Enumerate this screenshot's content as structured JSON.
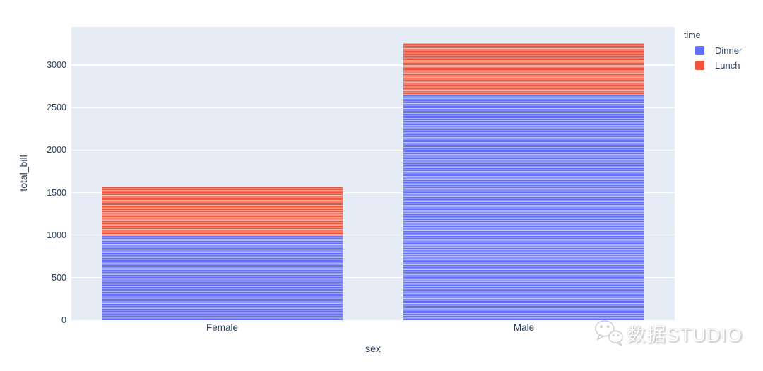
{
  "figure": {
    "background_color": "#ffffff",
    "plot_background_color": "#e5ecf6",
    "grid_color": "#ffffff",
    "font_color": "#2a3f5f"
  },
  "chart_data": {
    "type": "bar",
    "stacked": true,
    "orientation": "vertical",
    "title": "",
    "xlabel": "sex",
    "ylabel": "total_bill",
    "categories": [
      "Female",
      "Male"
    ],
    "series": [
      {
        "name": "Dinner",
        "color": "#636efa",
        "values": [
          1000,
          2650
        ]
      },
      {
        "name": "Lunch",
        "color": "#ef553b",
        "values": [
          570,
          610
        ]
      }
    ],
    "totals": [
      1570,
      3260
    ],
    "ylim": [
      0,
      3450
    ],
    "yticks": [
      0,
      500,
      1000,
      1500,
      2000,
      2500,
      3000
    ],
    "grid": "horizontal white gridlines",
    "legend_title": "time",
    "legend_position": "top-right",
    "texture_note": "each bar is built of many thin per-record stacked segments (striped look)"
  },
  "watermark": {
    "text": "数据STUDIO",
    "icon": "wechat-icon"
  }
}
